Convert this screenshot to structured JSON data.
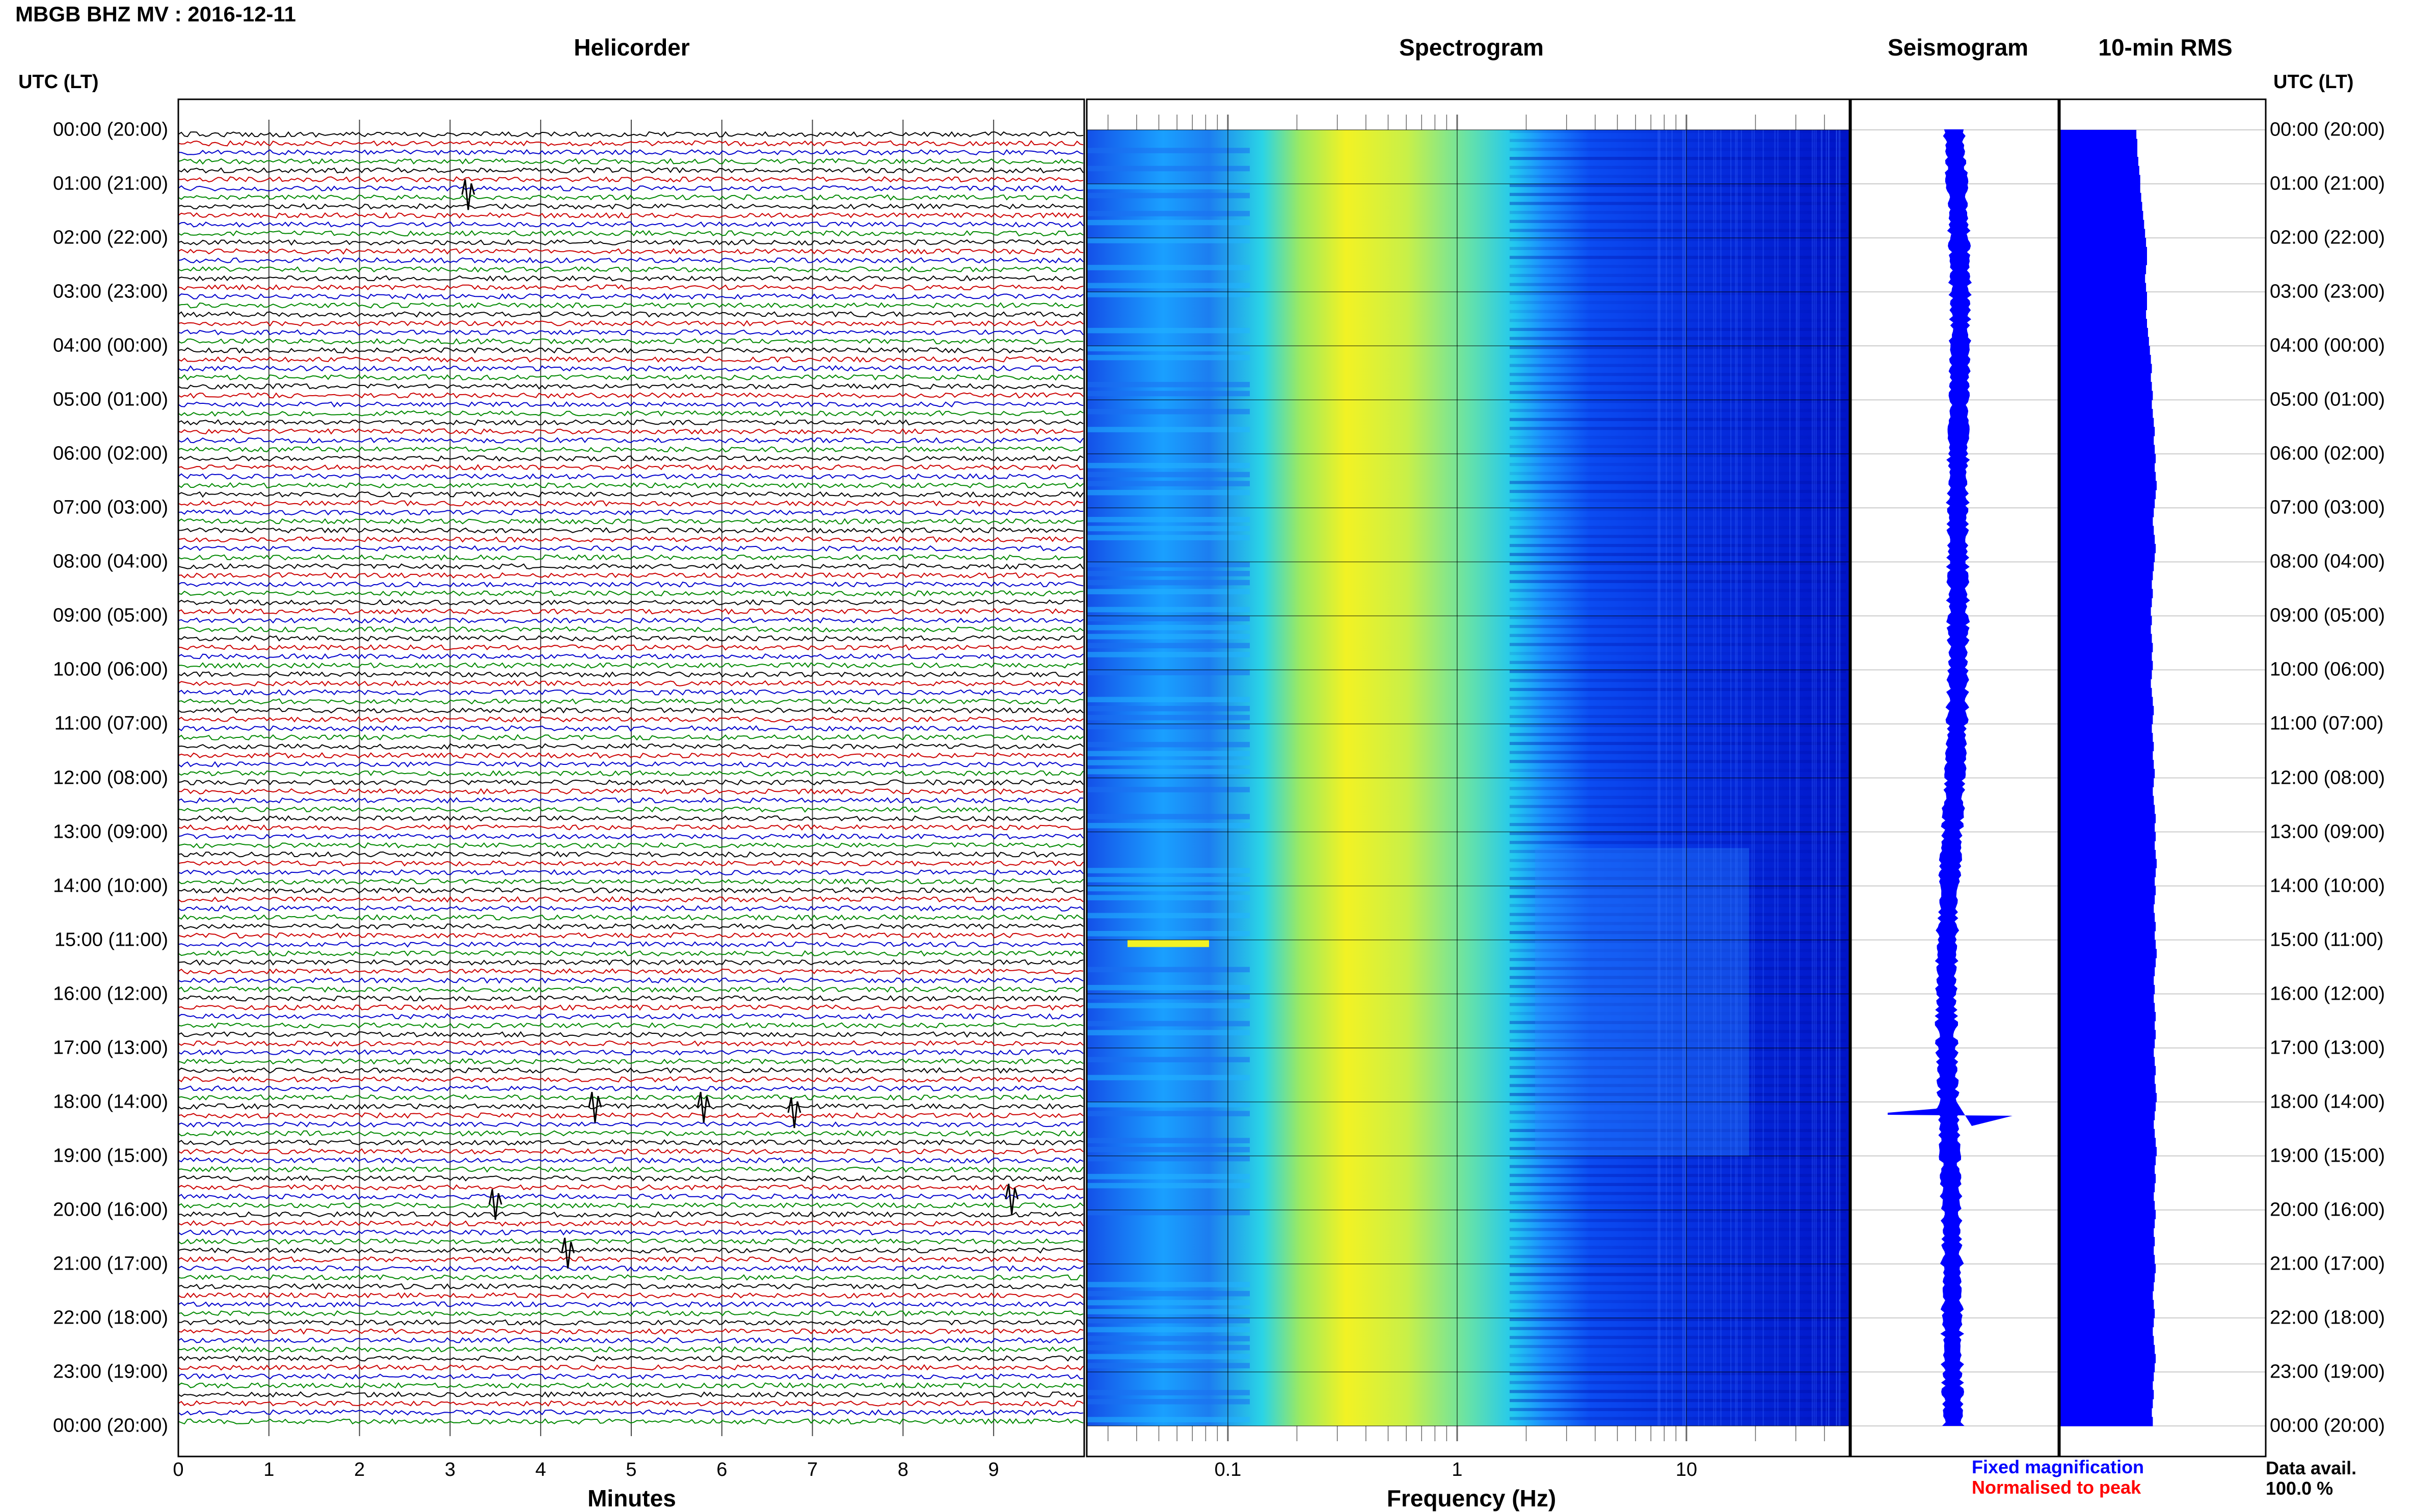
{
  "header": {
    "station_title": "MBGB BHZ MV : 2016-12-11"
  },
  "panels": {
    "helicorder": "Helicorder",
    "spectrogram": "Spectrogram",
    "seismogram": "Seismogram",
    "rms": "10-min RMS"
  },
  "axis": {
    "utc_header_left": "UTC (LT)",
    "utc_header_right": "UTC (LT)",
    "time_labels": [
      "00:00 (20:00)",
      "01:00 (21:00)",
      "02:00 (22:00)",
      "03:00 (23:00)",
      "04:00 (00:00)",
      "05:00 (01:00)",
      "06:00 (02:00)",
      "07:00 (03:00)",
      "08:00 (04:00)",
      "09:00 (05:00)",
      "10:00 (06:00)",
      "11:00 (07:00)",
      "12:00 (08:00)",
      "13:00 (09:00)",
      "14:00 (10:00)",
      "15:00 (11:00)",
      "16:00 (12:00)",
      "17:00 (13:00)",
      "18:00 (14:00)",
      "19:00 (15:00)",
      "20:00 (16:00)",
      "21:00 (17:00)",
      "22:00 (18:00)",
      "23:00 (19:00)",
      "00:00 (20:00)"
    ],
    "minutes_ticks": [
      "0",
      "1",
      "2",
      "3",
      "4",
      "5",
      "6",
      "7",
      "8",
      "9"
    ],
    "minutes_label": "Minutes",
    "freq_ticks": [
      "0.1",
      "1",
      "10"
    ],
    "freq_label": "Frequency (Hz)"
  },
  "legend": {
    "fixed": "Fixed magnification",
    "normalised": "Normalised to peak",
    "fixed_color": "#0000ff",
    "normalised_color": "#ff0000"
  },
  "data_availability": {
    "label": "Data avail.",
    "value": "100.0 %"
  },
  "chart_data": [
    {
      "type": "line",
      "title": "Helicorder",
      "xlabel": "Minutes",
      "xlim": [
        0,
        10
      ],
      "rows_per_hour": 6,
      "trace_colors": [
        "#000000",
        "#cc0000",
        "#0000cc",
        "#008800"
      ],
      "events": [
        {
          "utc_hour": 1.2,
          "minute": 3.2
        },
        {
          "utc_hour": 18.1,
          "minute": 4.6
        },
        {
          "utc_hour": 18.1,
          "minute": 5.8
        },
        {
          "utc_hour": 18.2,
          "minute": 6.8
        },
        {
          "utc_hour": 19.9,
          "minute": 3.5
        },
        {
          "utc_hour": 19.8,
          "minute": 9.2
        },
        {
          "utc_hour": 20.8,
          "minute": 4.3
        }
      ]
    },
    {
      "type": "heatmap",
      "title": "Spectrogram",
      "xlabel": "Frequency (Hz)",
      "x_scale": "log",
      "xlim": [
        0.02,
        50
      ],
      "colormap": [
        "#0000cc",
        "#0a3cf0",
        "#1aa0ff",
        "#00d8f0",
        "#4fe0b0",
        "#b8f050",
        "#f4f020"
      ],
      "band_peak_hz": [
        0.2,
        0.5
      ]
    },
    {
      "type": "line",
      "title": "Seismogram",
      "note_event_utc_hour": 18.2
    },
    {
      "type": "bar",
      "title": "10-min RMS",
      "orientation": "horizontal",
      "relative_values": [
        0.79,
        0.8,
        0.8,
        0.81,
        0.82,
        0.83,
        0.83,
        0.84,
        0.85,
        0.86,
        0.87,
        0.88,
        0.89,
        0.9,
        0.9,
        0.89,
        0.88,
        0.89,
        0.9,
        0.9,
        0.89,
        0.9,
        0.91,
        0.92,
        0.93,
        0.94,
        0.95,
        0.94,
        0.95,
        0.96,
        0.95,
        0.96,
        0.97,
        0.98,
        0.97,
        0.98,
        0.99,
        0.98,
        0.99,
        1.0,
        0.99,
        0.98,
        0.97,
        0.96,
        0.97,
        0.98,
        0.99,
        0.98,
        0.97,
        0.96,
        0.95,
        0.96,
        0.95,
        0.94,
        0.95,
        0.94,
        0.95,
        0.96,
        0.95,
        0.96,
        0.95,
        0.94,
        0.95,
        0.96,
        0.97,
        0.96,
        0.95,
        0.96,
        0.97,
        0.96,
        0.97,
        0.98,
        0.97,
        0.96,
        0.97,
        0.98,
        0.99,
        0.98,
        0.99,
        0.98,
        0.99,
        1.0,
        0.99,
        0.98,
        0.99,
        0.98,
        0.97,
        0.98,
        0.99,
        0.98,
        0.99,
        1.0,
        0.99,
        0.98,
        0.97,
        0.98,
        0.97,
        0.98,
        0.99,
        0.98,
        0.99,
        0.98,
        0.97,
        0.98,
        0.99,
        0.98,
        0.99,
        1.0,
        0.99,
        0.98,
        0.97,
        0.98,
        0.99,
        1.0,
        0.99,
        0.98,
        0.99,
        0.98,
        0.97,
        0.98,
        0.99,
        0.98,
        0.97,
        0.98,
        0.97,
        0.98,
        0.99,
        0.98,
        0.97,
        0.96,
        0.97,
        0.98,
        0.97,
        0.96,
        0.97,
        0.98,
        0.99,
        0.98,
        0.97,
        0.96,
        0.97,
        0.96,
        0.95,
        0.96
      ]
    }
  ]
}
